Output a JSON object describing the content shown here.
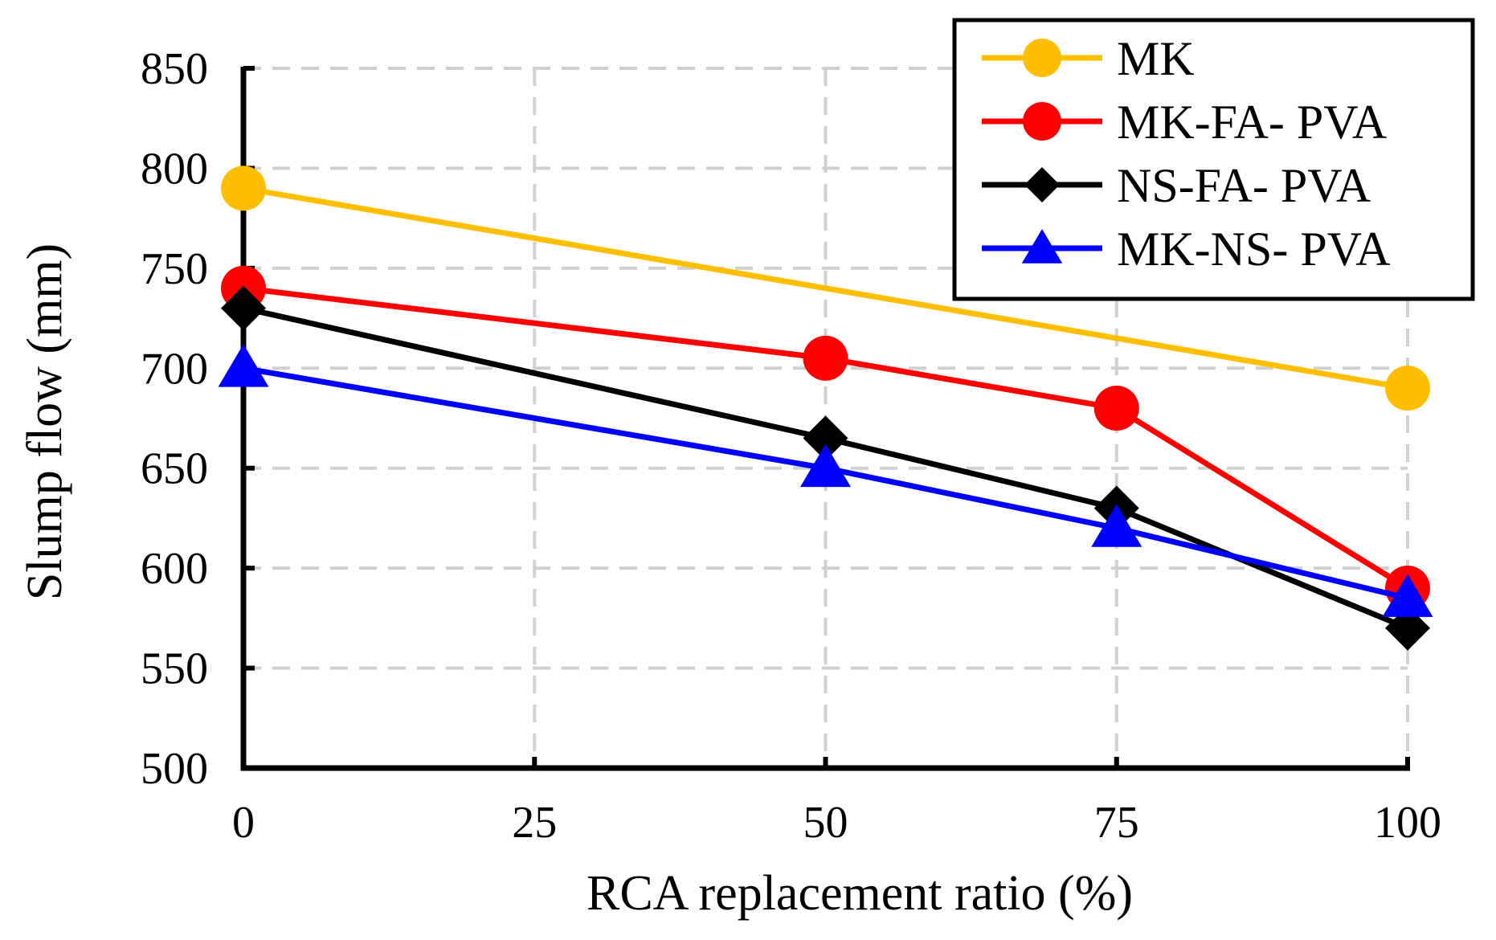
{
  "chart_data": {
    "type": "line",
    "title": "",
    "xlabel": "RCA replacement ratio (%)",
    "ylabel": "Slump flow (mm)",
    "xlim": [
      0,
      100
    ],
    "ylim": [
      500,
      850
    ],
    "xticks": [
      0,
      25,
      50,
      75,
      100
    ],
    "yticks": [
      500,
      550,
      600,
      650,
      700,
      750,
      800,
      850
    ],
    "xtick_labels": [
      "0",
      "25",
      "50",
      "75",
      "100"
    ],
    "ytick_labels": [
      "500",
      "550",
      "600",
      "650",
      "700",
      "750",
      "800",
      "850"
    ],
    "grid": true,
    "legend_position": "top-right",
    "series": [
      {
        "name": "MK",
        "color": "#FFBF00",
        "marker": "circle",
        "x": [
          0,
          100
        ],
        "values": [
          790,
          690
        ]
      },
      {
        "name": "MK-FA- PVA",
        "color": "#FF0000",
        "marker": "circle",
        "x": [
          0,
          50,
          75,
          100
        ],
        "values": [
          740,
          705,
          680,
          590
        ]
      },
      {
        "name": "NS-FA- PVA",
        "color": "#000000",
        "marker": "diamond",
        "x": [
          0,
          50,
          75,
          100
        ],
        "values": [
          730,
          665,
          630,
          570
        ]
      },
      {
        "name": "MK-NS- PVA",
        "color": "#0000FF",
        "marker": "triangle",
        "x": [
          0,
          50,
          75,
          100
        ],
        "values": [
          700,
          650,
          620,
          585
        ]
      }
    ]
  }
}
